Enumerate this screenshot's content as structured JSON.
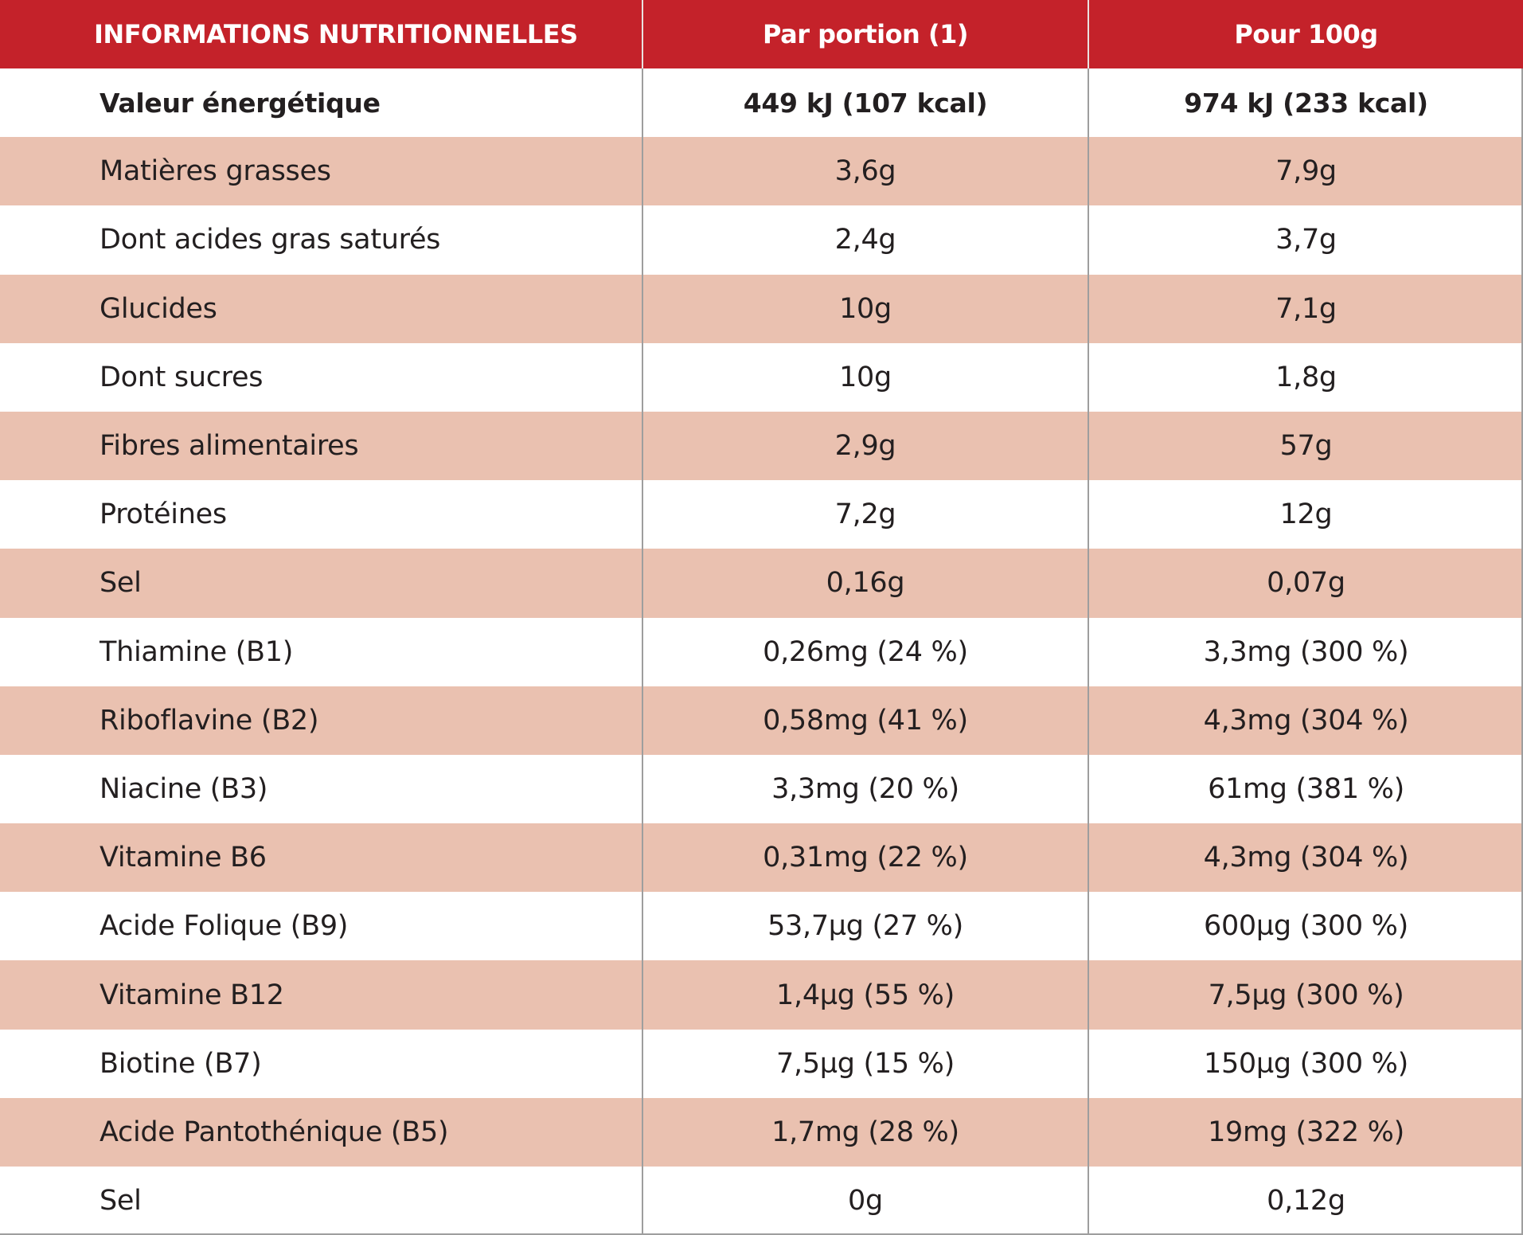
{
  "header": {
    "col_label": "INFORMATIONS NUTRITIONNELLES",
    "col_portion": "Par portion (1)",
    "col_100g": "Pour 100g"
  },
  "colors": {
    "header_bg": "#c4222a",
    "shaded_row": "#eac1b0",
    "plain_row": "#ffffff"
  },
  "rows": [
    {
      "label": "Valeur énergétique",
      "portion": "449 kJ (107 kcal)",
      "per100g": "974 kJ (233 kcal)"
    },
    {
      "label": "Matières grasses",
      "portion": "3,6g",
      "per100g": "7,9g"
    },
    {
      "label": "Dont acides gras saturés",
      "portion": "2,4g",
      "per100g": "3,7g"
    },
    {
      "label": "Glucides",
      "portion": "10g",
      "per100g": "7,1g"
    },
    {
      "label": "Dont sucres",
      "portion": "10g",
      "per100g": "1,8g"
    },
    {
      "label": "Fibres alimentaires",
      "portion": "2,9g",
      "per100g": "57g"
    },
    {
      "label": "Protéines",
      "portion": "7,2g",
      "per100g": "12g"
    },
    {
      "label": "Sel",
      "portion": "0,16g",
      "per100g": "0,07g"
    },
    {
      "label": "Thiamine (B1)",
      "portion": "0,26mg (24 %)",
      "per100g": "3,3mg (300 %)"
    },
    {
      "label": "Riboflavine (B2)",
      "portion": "0,58mg (41 %)",
      "per100g": "4,3mg (304 %)"
    },
    {
      "label": "Niacine (B3)",
      "portion": "3,3mg (20 %)",
      "per100g": "61mg (381 %)"
    },
    {
      "label": "Vitamine B6",
      "portion": "0,31mg (22 %)",
      "per100g": "4,3mg (304 %)"
    },
    {
      "label": "Acide Folique (B9)",
      "portion": "53,7µg (27 %)",
      "per100g": "600µg (300 %)"
    },
    {
      "label": "Vitamine B12",
      "portion": "1,4µg (55 %)",
      "per100g": "7,5µg (300 %)"
    },
    {
      "label": "Biotine (B7)",
      "portion": "7,5µg (15 %)",
      "per100g": "150µg (300 %)"
    },
    {
      "label": "Acide Pantothénique (B5)",
      "portion": "1,7mg (28 %)",
      "per100g": "19mg (322 %)"
    },
    {
      "label": "Sel",
      "portion": "0g",
      "per100g": "0,12g"
    }
  ]
}
